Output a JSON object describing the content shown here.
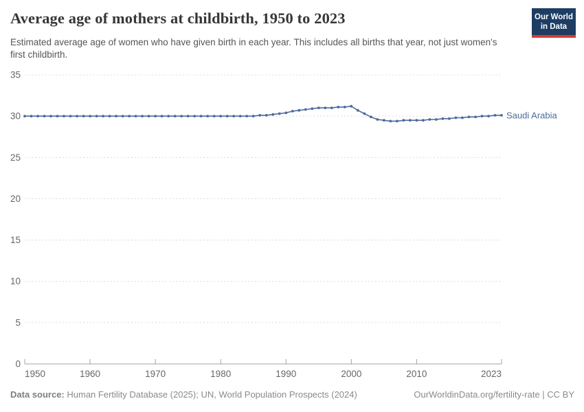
{
  "header": {
    "title": "Average age of mothers at childbirth, 1950 to 2023",
    "subtitle": "Estimated average age of women who have given birth in each year. This includes all births that year, not just women's first childbirth.",
    "logo": {
      "line1": "Our World",
      "line2": "in Data"
    }
  },
  "chart_data": {
    "type": "line",
    "title": "Average age of mothers at childbirth, 1950 to 2023",
    "xlabel": "",
    "ylabel": "",
    "ylim": [
      0,
      35
    ],
    "yticks": [
      0,
      5,
      10,
      15,
      20,
      25,
      30,
      35
    ],
    "xticks": [
      1950,
      1960,
      1970,
      1980,
      1990,
      2000,
      2010,
      2023
    ],
    "xlim": [
      1950,
      2023
    ],
    "grid": "horizontal-dashed",
    "legend_position": "end-of-line",
    "series": [
      {
        "name": "Saudi Arabia",
        "color": "#4c6a9c",
        "x": [
          1950,
          1951,
          1952,
          1953,
          1954,
          1955,
          1956,
          1957,
          1958,
          1959,
          1960,
          1961,
          1962,
          1963,
          1964,
          1965,
          1966,
          1967,
          1968,
          1969,
          1970,
          1971,
          1972,
          1973,
          1974,
          1975,
          1976,
          1977,
          1978,
          1979,
          1980,
          1981,
          1982,
          1983,
          1984,
          1985,
          1986,
          1987,
          1988,
          1989,
          1990,
          1991,
          1992,
          1993,
          1994,
          1995,
          1996,
          1997,
          1998,
          1999,
          2000,
          2001,
          2002,
          2003,
          2004,
          2005,
          2006,
          2007,
          2008,
          2009,
          2010,
          2011,
          2012,
          2013,
          2014,
          2015,
          2016,
          2017,
          2018,
          2019,
          2020,
          2021,
          2022,
          2023
        ],
        "values": [
          30,
          30,
          30,
          30,
          30,
          30,
          30,
          30,
          30,
          30,
          30,
          30,
          30,
          30,
          30,
          30,
          30,
          30,
          30,
          30,
          30,
          30,
          30,
          30,
          30,
          30,
          30,
          30,
          30,
          30,
          30,
          30,
          30,
          30,
          30,
          30,
          30.1,
          30.1,
          30.2,
          30.3,
          30.4,
          30.6,
          30.7,
          30.8,
          30.9,
          31,
          31,
          31,
          31.1,
          31.1,
          31.2,
          30.7,
          30.3,
          29.9,
          29.6,
          29.5,
          29.4,
          29.4,
          29.5,
          29.5,
          29.5,
          29.5,
          29.6,
          29.6,
          29.7,
          29.7,
          29.8,
          29.8,
          29.9,
          29.9,
          30,
          30,
          30.1,
          30.1
        ]
      }
    ],
    "colors": {
      "gridline": "#dcdcdc",
      "axis": "#a3a3a3",
      "tick_label": "#666666",
      "series_label": "#4c6a9c"
    }
  },
  "footer": {
    "datasource_label": "Data source:",
    "datasource_text": "Human Fertility Database (2025); UN, World Population Prospects (2024)",
    "link": "OurWorldinData.org/fertility-rate | CC BY"
  }
}
